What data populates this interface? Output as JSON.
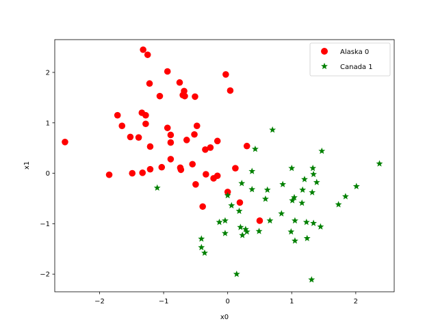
{
  "chart_data": {
    "type": "scatter",
    "xlabel": "x0",
    "ylabel": "x1",
    "xlim": [
      -2.7,
      2.6
    ],
    "ylim": [
      -2.35,
      2.65
    ],
    "xticks": [
      -2,
      -1,
      0,
      1,
      2
    ],
    "yticks": [
      -2,
      -1,
      0,
      1,
      2
    ],
    "legend_position": "top-right",
    "series": [
      {
        "name": "Alaska 0",
        "color": "#ff0000",
        "marker": "circle",
        "points": [
          [
            -2.54,
            0.62
          ],
          [
            -1.85,
            -0.03
          ],
          [
            -1.72,
            1.15
          ],
          [
            -1.65,
            0.94
          ],
          [
            -1.52,
            0.72
          ],
          [
            -1.49,
            0.0
          ],
          [
            -1.39,
            0.71
          ],
          [
            -1.34,
            1.2
          ],
          [
            -1.32,
            2.45
          ],
          [
            -1.33,
            0.01
          ],
          [
            -1.28,
            1.15
          ],
          [
            -1.28,
            0.98
          ],
          [
            -1.25,
            2.35
          ],
          [
            -1.22,
            1.78
          ],
          [
            -1.21,
            0.53
          ],
          [
            -1.21,
            0.08
          ],
          [
            -1.06,
            1.53
          ],
          [
            -1.03,
            0.12
          ],
          [
            -0.94,
            2.02
          ],
          [
            -0.94,
            0.9
          ],
          [
            -0.89,
            0.76
          ],
          [
            -0.89,
            0.61
          ],
          [
            -0.89,
            0.28
          ],
          [
            -0.75,
            1.8
          ],
          [
            -0.74,
            0.11
          ],
          [
            -0.73,
            0.07
          ],
          [
            -0.7,
            1.55
          ],
          [
            -0.68,
            1.63
          ],
          [
            -0.67,
            1.53
          ],
          [
            -0.64,
            0.66
          ],
          [
            -0.55,
            0.18
          ],
          [
            -0.51,
            1.52
          ],
          [
            -0.52,
            0.77
          ],
          [
            -0.5,
            -0.22
          ],
          [
            -0.48,
            0.94
          ],
          [
            -0.39,
            -0.66
          ],
          [
            -0.35,
            0.47
          ],
          [
            -0.34,
            -0.02
          ],
          [
            -0.27,
            0.51
          ],
          [
            -0.22,
            -0.1
          ],
          [
            -0.16,
            -0.05
          ],
          [
            -0.16,
            0.64
          ],
          [
            -0.03,
            1.96
          ],
          [
            0.0,
            -0.37
          ],
          [
            0.04,
            1.64
          ],
          [
            0.12,
            0.1
          ],
          [
            0.19,
            -0.58
          ],
          [
            0.3,
            0.54
          ],
          [
            0.5,
            -0.94
          ]
        ]
      },
      {
        "name": "Canada 1",
        "color": "#008000",
        "marker": "star",
        "points": [
          [
            -1.1,
            -0.29
          ],
          [
            -0.41,
            -1.3
          ],
          [
            -0.41,
            -1.47
          ],
          [
            -0.36,
            -1.58
          ],
          [
            -0.13,
            -0.97
          ],
          [
            -0.04,
            -0.94
          ],
          [
            -0.04,
            -1.19
          ],
          [
            0.0,
            -0.44
          ],
          [
            0.06,
            -0.64
          ],
          [
            0.14,
            -2.0
          ],
          [
            0.18,
            -0.75
          ],
          [
            0.2,
            -1.07
          ],
          [
            0.22,
            -0.2
          ],
          [
            0.23,
            -1.23
          ],
          [
            0.28,
            -1.11
          ],
          [
            0.3,
            -1.16
          ],
          [
            0.38,
            -0.32
          ],
          [
            0.38,
            0.04
          ],
          [
            0.43,
            0.48
          ],
          [
            0.49,
            -1.15
          ],
          [
            0.59,
            -0.51
          ],
          [
            0.62,
            -0.33
          ],
          [
            0.66,
            -0.94
          ],
          [
            0.7,
            0.86
          ],
          [
            0.84,
            -0.8
          ],
          [
            0.86,
            -0.22
          ],
          [
            0.99,
            -1.16
          ],
          [
            1.0,
            0.1
          ],
          [
            1.01,
            -0.54
          ],
          [
            1.04,
            -0.48
          ],
          [
            1.05,
            -0.94
          ],
          [
            1.05,
            -1.34
          ],
          [
            1.16,
            -0.59
          ],
          [
            1.17,
            -0.33
          ],
          [
            1.2,
            -0.12
          ],
          [
            1.23,
            -0.97
          ],
          [
            1.24,
            -1.29
          ],
          [
            1.31,
            -2.11
          ],
          [
            1.32,
            -0.38
          ],
          [
            1.33,
            0.1
          ],
          [
            1.34,
            -0.02
          ],
          [
            1.34,
            -0.99
          ],
          [
            1.39,
            -0.18
          ],
          [
            1.45,
            -1.06
          ],
          [
            1.47,
            0.44
          ],
          [
            1.73,
            -0.62
          ],
          [
            1.84,
            -0.46
          ],
          [
            2.01,
            -0.26
          ],
          [
            2.37,
            0.19
          ]
        ]
      }
    ]
  }
}
